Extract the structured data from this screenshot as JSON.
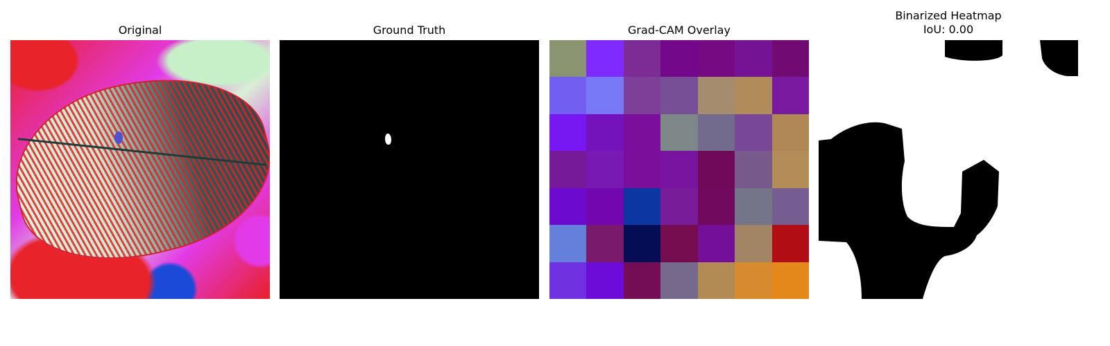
{
  "panels": [
    {
      "title": "Original"
    },
    {
      "title": "Ground Truth"
    },
    {
      "title": "Grad-CAM Overlay"
    },
    {
      "title": "Binarized Heatmap\nIoU: 0.00"
    }
  ],
  "gradcam_grid": [
    [
      "#8a9470",
      "#7f2bff",
      "#7d2b95",
      "#74088b",
      "#760a83",
      "#741394",
      "#720a73"
    ],
    [
      "#725ef0",
      "#7879f6",
      "#7e3f98",
      "#774f97",
      "#a58c6e",
      "#b08c5a",
      "#7819a0"
    ],
    [
      "#7717f1",
      "#7412bc",
      "#7b0e9b",
      "#7d8788",
      "#736b8e",
      "#784796",
      "#b08856"
    ],
    [
      "#761a9a",
      "#7819b3",
      "#7b0e9b",
      "#7914a0",
      "#700a58",
      "#78598c",
      "#b38c58"
    ],
    [
      "#6c0bcf",
      "#7207af",
      "#0c36a1",
      "#781c99",
      "#710a5e",
      "#747589",
      "#755c91"
    ],
    [
      "#6480da",
      "#7a1a6a",
      "#050e55",
      "#740c4f",
      "#730f99",
      "#a28565",
      "#b10d15"
    ],
    [
      "#6f30e0",
      "#6c0cd8",
      "#740d55",
      "#75698c",
      "#b18a54",
      "#d88a2e",
      "#e5881b"
    ]
  ]
}
